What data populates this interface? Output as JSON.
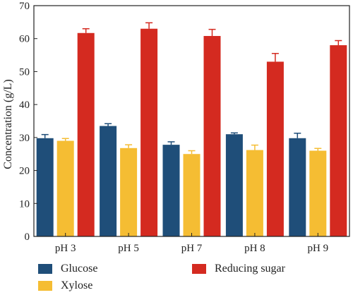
{
  "chart_data": {
    "type": "bar",
    "categories": [
      "pH 3",
      "pH 5",
      "pH 7",
      "pH 8",
      "pH 9"
    ],
    "series": [
      {
        "name": "Glucose",
        "color": "#1f4e79",
        "values": [
          29.8,
          33.5,
          27.8,
          31.0,
          29.8
        ],
        "errors": [
          1.1,
          0.7,
          0.9,
          0.4,
          1.5
        ]
      },
      {
        "name": "Xylose",
        "color": "#f5bd33",
        "values": [
          29.0,
          26.8,
          25.0,
          26.2,
          26.0
        ],
        "errors": [
          0.7,
          1.0,
          1.0,
          1.5,
          0.7
        ]
      },
      {
        "name": "Reducing sugar",
        "color": "#d42a20",
        "values": [
          61.7,
          63.0,
          60.8,
          53.0,
          58.0
        ],
        "errors": [
          1.3,
          1.8,
          2.0,
          2.5,
          1.4
        ]
      }
    ],
    "title": "",
    "xlabel": "",
    "ylabel": "Concentration (g/L)",
    "ylim": [
      0,
      70
    ],
    "yticks": [
      "0",
      "10",
      "20",
      "30",
      "40",
      "50",
      "60",
      "70"
    ],
    "grid": false,
    "legend_position": "bottom"
  }
}
